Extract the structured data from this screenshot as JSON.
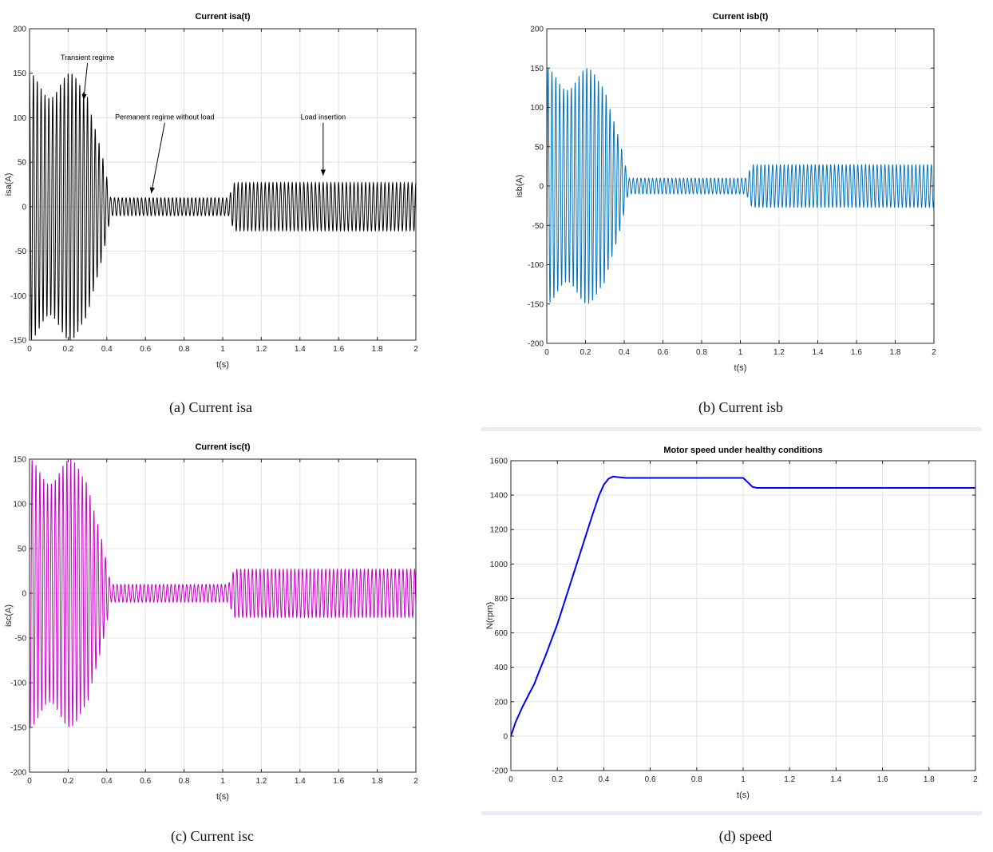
{
  "chart_data": [
    {
      "type": "line",
      "title": "Current isa(t)",
      "xlabel": "t(s)",
      "ylabel": "isa(A)",
      "caption": "(a) Current isa",
      "xlim": [
        0,
        2
      ],
      "ylim": [
        -150,
        200
      ],
      "xticks": [
        0,
        0.2,
        0.4,
        0.6,
        0.8,
        1,
        1.2,
        1.4,
        1.6,
        1.8,
        2
      ],
      "yticks": [
        -150,
        -100,
        -50,
        0,
        50,
        100,
        150,
        200
      ],
      "grid": true,
      "color": "#000000",
      "signal": {
        "frequency_hz": 50,
        "phase_deg": 90,
        "transient_peak": 150,
        "no_load_amplitude": 10,
        "load_amplitude": 27,
        "transient_end_s": 0.42,
        "load_time_s": 1.03
      },
      "annotations": [
        {
          "text": "Transient regime",
          "x": 0.3,
          "y": 165,
          "arrow_to": [
            0.28,
            120
          ]
        },
        {
          "text": "Permanent regime without load",
          "x": 0.7,
          "y": 98,
          "arrow_to": [
            0.63,
            15
          ]
        },
        {
          "text": "Load insertion",
          "x": 1.52,
          "y": 98,
          "arrow_to": [
            1.52,
            35
          ]
        }
      ]
    },
    {
      "type": "line",
      "title": "Current isb(t)",
      "xlabel": "t(s)",
      "ylabel": "isb(A)",
      "caption": "(b) Current isb",
      "xlim": [
        0,
        2
      ],
      "ylim": [
        -200,
        200
      ],
      "xticks": [
        0,
        0.2,
        0.4,
        0.6,
        0.8,
        1,
        1.2,
        1.4,
        1.6,
        1.8,
        2
      ],
      "yticks": [
        -200,
        -150,
        -100,
        -50,
        0,
        50,
        100,
        150,
        200
      ],
      "grid": true,
      "color": "#0072bd",
      "signal": {
        "frequency_hz": 50,
        "phase_deg": -30,
        "transient_peak": 150,
        "no_load_amplitude": 10,
        "load_amplitude": 27,
        "transient_end_s": 0.42,
        "load_time_s": 1.03
      }
    },
    {
      "type": "line",
      "title": "Current isc(t)",
      "xlabel": "t(s)",
      "ylabel": "isc(A)",
      "caption": "(c) Current isc",
      "xlim": [
        0,
        2
      ],
      "ylim": [
        -200,
        150
      ],
      "xticks": [
        0,
        0.2,
        0.4,
        0.6,
        0.8,
        1,
        1.2,
        1.4,
        1.6,
        1.8,
        2
      ],
      "yticks": [
        -200,
        -150,
        -100,
        -50,
        0,
        50,
        100,
        150
      ],
      "grid": true,
      "color": "#c800c8",
      "signal": {
        "frequency_hz": 50,
        "phase_deg": 210,
        "transient_peak": 150,
        "no_load_amplitude": 10,
        "load_amplitude": 27,
        "transient_end_s": 0.42,
        "load_time_s": 1.03
      }
    },
    {
      "type": "line",
      "title": "Motor speed under healthy conditions",
      "xlabel": "t(s)",
      "ylabel": "N(rpm)",
      "caption": "(d) speed",
      "xlim": [
        0,
        2
      ],
      "ylim": [
        -200,
        1600
      ],
      "xticks": [
        0,
        0.2,
        0.4,
        0.6,
        0.8,
        1,
        1.2,
        1.4,
        1.6,
        1.8,
        2
      ],
      "yticks": [
        -200,
        0,
        200,
        400,
        600,
        800,
        1000,
        1200,
        1400,
        1600
      ],
      "grid": true,
      "color": "#0000ff",
      "x": [
        0,
        0.02,
        0.05,
        0.08,
        0.1,
        0.12,
        0.15,
        0.2,
        0.25,
        0.3,
        0.35,
        0.38,
        0.4,
        0.42,
        0.44,
        0.46,
        0.5,
        0.6,
        0.8,
        1.0,
        1.02,
        1.04,
        1.06,
        1.1,
        1.5,
        2.0
      ],
      "y": [
        0,
        80,
        170,
        250,
        300,
        370,
        470,
        650,
        860,
        1070,
        1280,
        1400,
        1460,
        1495,
        1508,
        1505,
        1500,
        1500,
        1500,
        1500,
        1475,
        1448,
        1442,
        1442,
        1442,
        1442
      ]
    }
  ]
}
